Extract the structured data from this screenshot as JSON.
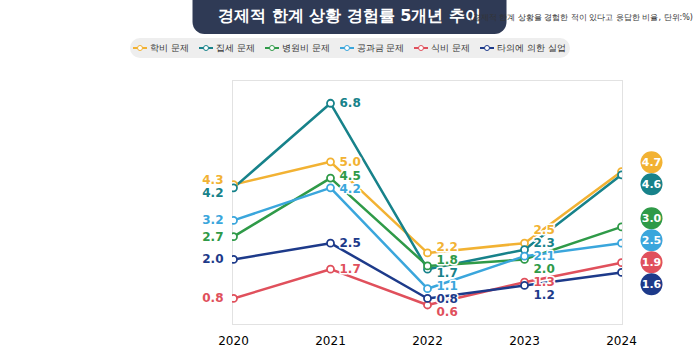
{
  "chart_data": {
    "type": "line",
    "title": "경제적 한계 상황 경험률 5개년 추이",
    "subtitle": "(경제적 한계 상황을 경험한 적이 있다고 응답한 비율, 단위:%)",
    "categories": [
      "2020",
      "2021",
      "2022",
      "2023",
      "2024"
    ],
    "series": [
      {
        "name": "학비 문제",
        "color": "#f2b233",
        "values": [
          4.3,
          5.0,
          2.2,
          2.5,
          4.7
        ]
      },
      {
        "name": "집세 문제",
        "color": "#17828a",
        "values": [
          4.2,
          6.8,
          1.7,
          2.3,
          4.6
        ]
      },
      {
        "name": "병원비 문제",
        "color": "#2f9a48",
        "values": [
          2.7,
          4.5,
          1.8,
          2.0,
          3.0
        ]
      },
      {
        "name": "공과금 문제",
        "color": "#3aa6dc",
        "values": [
          3.2,
          4.2,
          1.1,
          2.1,
          2.5
        ]
      },
      {
        "name": "식비 문제",
        "color": "#e0505c",
        "values": [
          0.8,
          1.7,
          0.6,
          1.3,
          1.9
        ]
      },
      {
        "name": "타의에 의한 실업",
        "color": "#1d3a8a",
        "values": [
          2.0,
          2.5,
          0.8,
          1.2,
          1.6
        ]
      }
    ],
    "ylim": [
      0,
      7.5
    ],
    "yticks": [],
    "tick_labels": "x",
    "data_labels": true,
    "marker": "circle",
    "grid": false
  }
}
